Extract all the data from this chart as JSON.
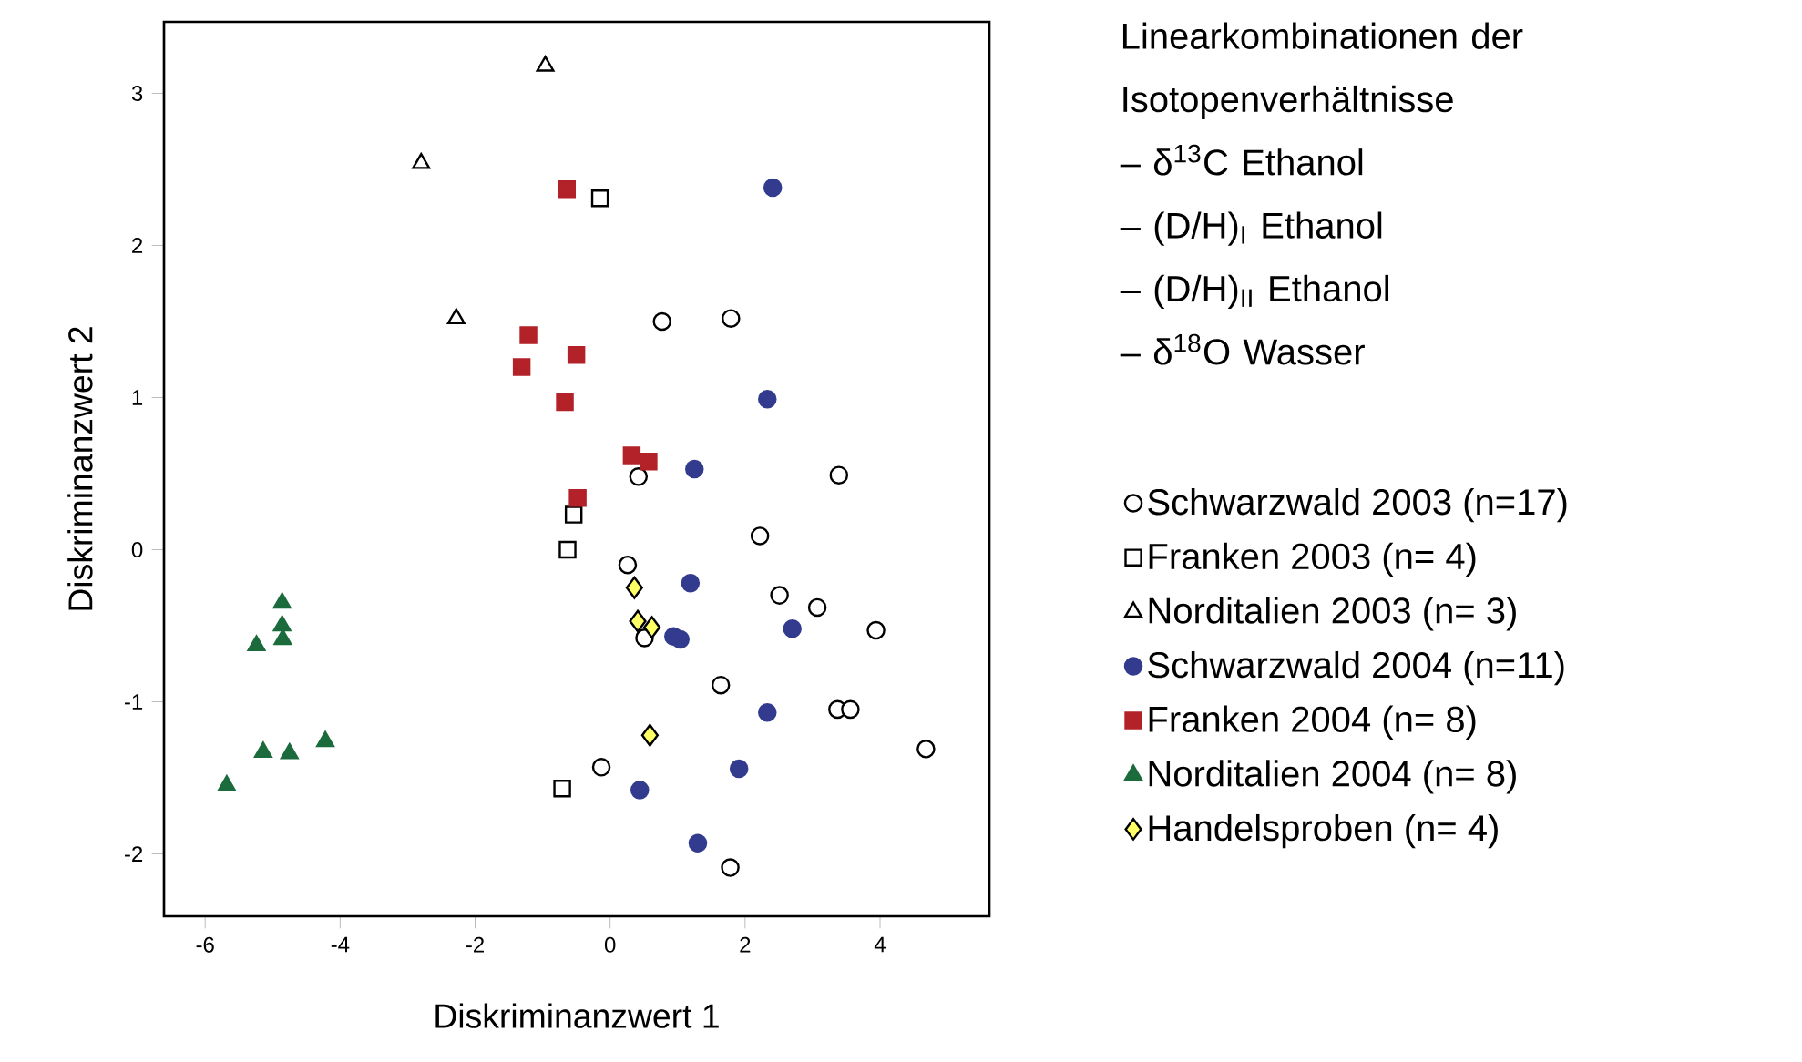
{
  "chart_data": {
    "type": "scatter",
    "xlabel": "Diskriminanzwert 1",
    "ylabel": "Diskriminanzwert 2",
    "xlim": [
      -6.61,
      5.62
    ],
    "ylim": [
      -2.41,
      3.47
    ],
    "xticks": [
      -6,
      -4,
      -2,
      0,
      2,
      4
    ],
    "yticks": [
      -2,
      -1,
      0,
      1,
      2,
      3
    ],
    "grid": false,
    "legend": "right",
    "annotations": [
      "Linearkombinationen der Isotopenverhältnisse",
      "– δ$^{13}$C   Ethanol",
      "– (D/H)$_{I}$   Ethanol",
      "– (D/H)$_{II}$   Ethanol",
      "– δ$^{18}$O   Wasser"
    ],
    "series": [
      {
        "name": "Schwarzwald 2003   (n=17)",
        "color": "#ffffff",
        "marker": "circle",
        "x": [
          0.77,
          1.79,
          0.42,
          3.39,
          2.22,
          0.26,
          2.51,
          3.07,
          0.51,
          3.94,
          1.64,
          3.37,
          3.56,
          4.68,
          -0.13,
          1.78
        ],
        "values": [
          1.5,
          1.52,
          0.48,
          0.49,
          0.09,
          -0.1,
          -0.3,
          -0.38,
          -0.58,
          -0.53,
          -0.89,
          -1.05,
          -1.05,
          -1.31,
          -1.43,
          -2.09
        ]
      },
      {
        "name": "Franken 2003   (n= 4)",
        "color": "#ffffff",
        "marker": "square",
        "x": [
          -0.15,
          -0.54,
          -0.63,
          -0.71
        ],
        "values": [
          2.31,
          0.23,
          0.0,
          -1.57
        ]
      },
      {
        "name": "Norditalien 2003   (n= 3)",
        "color": "#ffffff",
        "marker": "triangle",
        "x": [
          -0.96,
          -2.8,
          -2.28
        ],
        "values": [
          3.18,
          2.54,
          1.52
        ]
      },
      {
        "name": "Schwarzwald 2004   (n=11)",
        "color": "#333b8f",
        "marker": "circle",
        "x": [
          2.41,
          2.33,
          1.25,
          1.19,
          0.94,
          1.04,
          2.7,
          2.33,
          1.91,
          0.44,
          1.3
        ],
        "values": [
          2.38,
          0.99,
          0.53,
          -0.22,
          -0.57,
          -0.59,
          -0.52,
          -1.07,
          -1.44,
          -1.58,
          -1.93
        ]
      },
      {
        "name": "Franken 2004   (n= 8)",
        "color": "#b22228",
        "marker": "square",
        "x": [
          -0.64,
          -1.21,
          -0.5,
          -1.31,
          -0.67,
          0.32,
          0.57,
          -0.48
        ],
        "values": [
          2.37,
          1.41,
          1.28,
          1.2,
          0.97,
          0.62,
          0.58,
          0.34
        ]
      },
      {
        "name": "Norditalien 2004   (n= 8)",
        "color": "#1b6b3c",
        "marker": "triangle",
        "x": [
          -4.86,
          -4.86,
          -4.85,
          -5.24,
          -5.14,
          -4.75,
          -4.22,
          -5.68
        ],
        "values": [
          -0.35,
          -0.5,
          -0.59,
          -0.63,
          -1.33,
          -1.34,
          -1.26,
          -1.55
        ]
      },
      {
        "name": "Handelsproben   (n= 4)",
        "color": "#ffff66",
        "marker": "diamond",
        "x": [
          0.36,
          0.41,
          0.62,
          0.59
        ],
        "values": [
          -0.25,
          -0.47,
          -0.51,
          -1.22
        ]
      }
    ]
  }
}
